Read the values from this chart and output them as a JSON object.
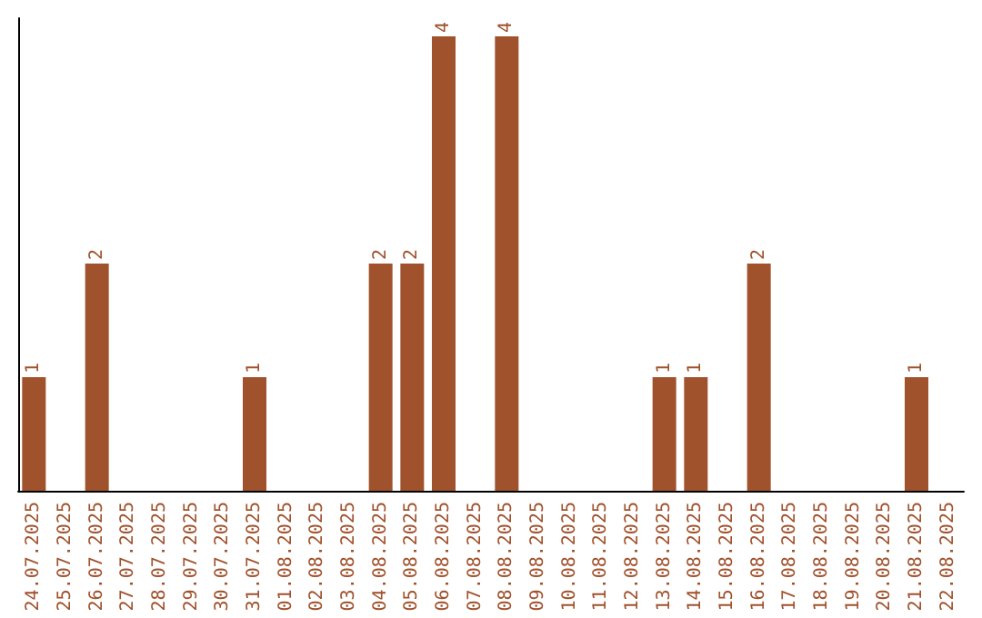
{
  "chart_data": {
    "type": "bar",
    "categories": [
      "24.07.2025",
      "25.07.2025",
      "26.07.2025",
      "27.07.2025",
      "28.07.2025",
      "29.07.2025",
      "30.07.2025",
      "31.07.2025",
      "01.08.2025",
      "02.08.2025",
      "03.08.2025",
      "04.08.2025",
      "05.08.2025",
      "06.08.2025",
      "07.08.2025",
      "08.08.2025",
      "09.08.2025",
      "10.08.2025",
      "11.08.2025",
      "12.08.2025",
      "13.08.2025",
      "14.08.2025",
      "15.08.2025",
      "16.08.2025",
      "17.08.2025",
      "18.08.2025",
      "19.08.2025",
      "20.08.2025",
      "21.08.2025",
      "22.08.2025"
    ],
    "values": [
      1,
      0,
      2,
      0,
      0,
      0,
      0,
      1,
      0,
      0,
      0,
      2,
      2,
      4,
      0,
      4,
      0,
      0,
      0,
      0,
      1,
      1,
      0,
      2,
      0,
      0,
      0,
      0,
      1,
      0
    ],
    "value_labels": [
      "1",
      null,
      "2",
      null,
      null,
      null,
      null,
      "1",
      null,
      null,
      null,
      "2",
      "2",
      "4",
      null,
      "4",
      null,
      null,
      null,
      null,
      "1",
      "1",
      null,
      "2",
      null,
      null,
      null,
      null,
      "1",
      null
    ],
    "color": "#a0522d"
  }
}
